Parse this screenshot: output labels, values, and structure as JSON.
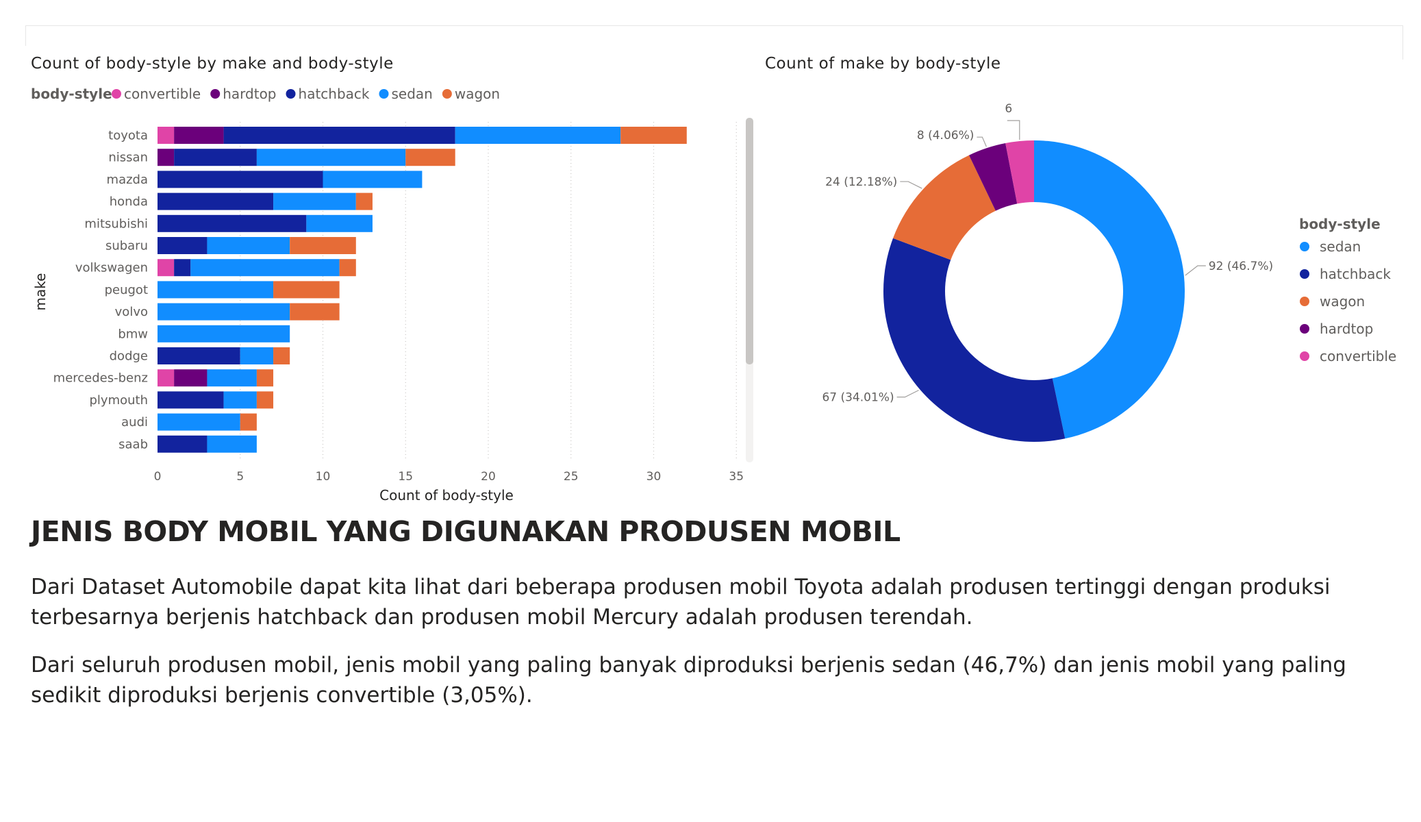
{
  "colors": {
    "convertible": "#E044A7",
    "hardtop": "#6B007B",
    "hatchback": "#12239E",
    "sedan": "#118DFF",
    "wagon": "#E66C37"
  },
  "chart_data": [
    {
      "type": "bar",
      "orientation": "horizontal",
      "stacked": true,
      "title": "Count of body-style by make and body-style",
      "xlabel": "Count of body-style",
      "ylabel": "make",
      "xlim": [
        0,
        35
      ],
      "xticks": [
        0,
        5,
        10,
        15,
        20,
        25,
        30,
        35
      ],
      "legend_title": "body-style",
      "legend_position": "top-left",
      "grid": "vertical dotted",
      "categories": [
        "toyota",
        "nissan",
        "mazda",
        "honda",
        "mitsubishi",
        "subaru",
        "volkswagen",
        "peugot",
        "volvo",
        "bmw",
        "dodge",
        "mercedes-benz",
        "plymouth",
        "audi",
        "saab"
      ],
      "series": [
        {
          "name": "convertible",
          "values": [
            1,
            0,
            0,
            0,
            0,
            0,
            1,
            0,
            0,
            0,
            0,
            1,
            0,
            0,
            0
          ]
        },
        {
          "name": "hardtop",
          "values": [
            3,
            1,
            0,
            0,
            0,
            0,
            0,
            0,
            0,
            0,
            0,
            2,
            0,
            0,
            0
          ]
        },
        {
          "name": "hatchback",
          "values": [
            14,
            5,
            10,
            7,
            9,
            3,
            1,
            0,
            0,
            0,
            5,
            0,
            4,
            0,
            3
          ]
        },
        {
          "name": "sedan",
          "values": [
            10,
            9,
            6,
            5,
            4,
            5,
            9,
            7,
            8,
            8,
            2,
            3,
            2,
            5,
            3
          ]
        },
        {
          "name": "wagon",
          "values": [
            4,
            3,
            0,
            1,
            0,
            4,
            1,
            4,
            3,
            0,
            1,
            1,
            1,
            1,
            0
          ]
        }
      ]
    },
    {
      "type": "pie",
      "donut": true,
      "title": "Count of make by body-style",
      "legend_title": "body-style",
      "legend_position": "right",
      "slices": [
        {
          "name": "sedan",
          "value": 92,
          "label": "92 (46.7%)"
        },
        {
          "name": "hatchback",
          "value": 67,
          "label": "67 (34.01%)"
        },
        {
          "name": "wagon",
          "value": 24,
          "label": "24 (12.18%)"
        },
        {
          "name": "hardtop",
          "value": 8,
          "label": "8 (4.06%)"
        },
        {
          "name": "convertible",
          "value": 6,
          "label": "6 (3.05%)"
        }
      ]
    }
  ],
  "text": {
    "headline": "JENIS BODY MOBIL YANG DIGUNAKAN PRODUSEN MOBIL",
    "paragraph1": "Dari Dataset Automobile dapat kita lihat dari beberapa produsen mobil Toyota adalah produsen tertinggi dengan produksi terbesarnya berjenis hatchback dan produsen mobil Mercury adalah produsen terendah.",
    "paragraph2": "Dari seluruh produsen mobil, jenis mobil yang paling banyak diproduksi berjenis sedan (46,7%) dan jenis mobil yang paling sedikit diproduksi berjenis convertible (3,05%)."
  }
}
